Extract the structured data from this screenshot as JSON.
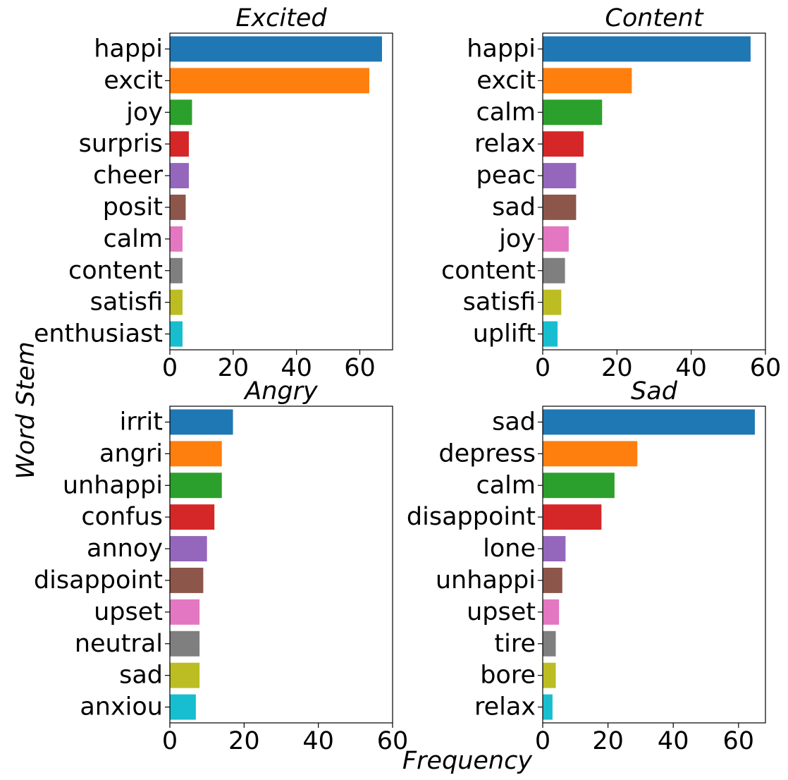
{
  "figure": {
    "xlabel": "Frequency",
    "ylabel": "Word Stem"
  },
  "colors": [
    "#1f77b4",
    "#ff7f0e",
    "#2ca02c",
    "#d62728",
    "#9467bd",
    "#8c564b",
    "#e377c2",
    "#7f7f7f",
    "#bcbd22",
    "#17becf"
  ],
  "chart_data": [
    {
      "type": "bar",
      "orientation": "horizontal",
      "title": "Excited",
      "categories": [
        "happi",
        "excit",
        "joy",
        "surpris",
        "cheer",
        "posit",
        "calm",
        "content",
        "satisfi",
        "enthusiast"
      ],
      "values": [
        67,
        63,
        7,
        6,
        6,
        5,
        4,
        4,
        4,
        4
      ],
      "xlim": [
        0,
        70.35
      ],
      "xticks": [
        0,
        20,
        40,
        60
      ],
      "grid": false
    },
    {
      "type": "bar",
      "orientation": "horizontal",
      "title": "Content",
      "categories": [
        "happi",
        "excit",
        "calm",
        "relax",
        "peac",
        "sad",
        "joy",
        "content",
        "satisfi",
        "uplift"
      ],
      "values": [
        56,
        24,
        16,
        11,
        9,
        9,
        7,
        6,
        5,
        4
      ],
      "xlim": [
        0,
        60
      ],
      "xticks": [
        0,
        20,
        40,
        60
      ],
      "grid": false
    },
    {
      "type": "bar",
      "orientation": "horizontal",
      "title": "Angry",
      "categories": [
        "irrit",
        "angri",
        "unhappi",
        "confus",
        "annoy",
        "disappoint",
        "upset",
        "neutral",
        "sad",
        "anxiou"
      ],
      "values": [
        17,
        14,
        14,
        12,
        10,
        9,
        8,
        8,
        8,
        7
      ],
      "xlim": [
        0,
        60
      ],
      "xticks": [
        0,
        20,
        40,
        60
      ],
      "grid": false
    },
    {
      "type": "bar",
      "orientation": "horizontal",
      "title": "Sad",
      "categories": [
        "sad",
        "depress",
        "calm",
        "disappoint",
        "lone",
        "unhappi",
        "upset",
        "tire",
        "bore",
        "relax"
      ],
      "values": [
        65,
        29,
        22,
        18,
        7,
        6,
        5,
        4,
        4,
        3
      ],
      "xlim": [
        0,
        68.25
      ],
      "xticks": [
        0,
        20,
        40,
        60
      ],
      "grid": false
    }
  ]
}
